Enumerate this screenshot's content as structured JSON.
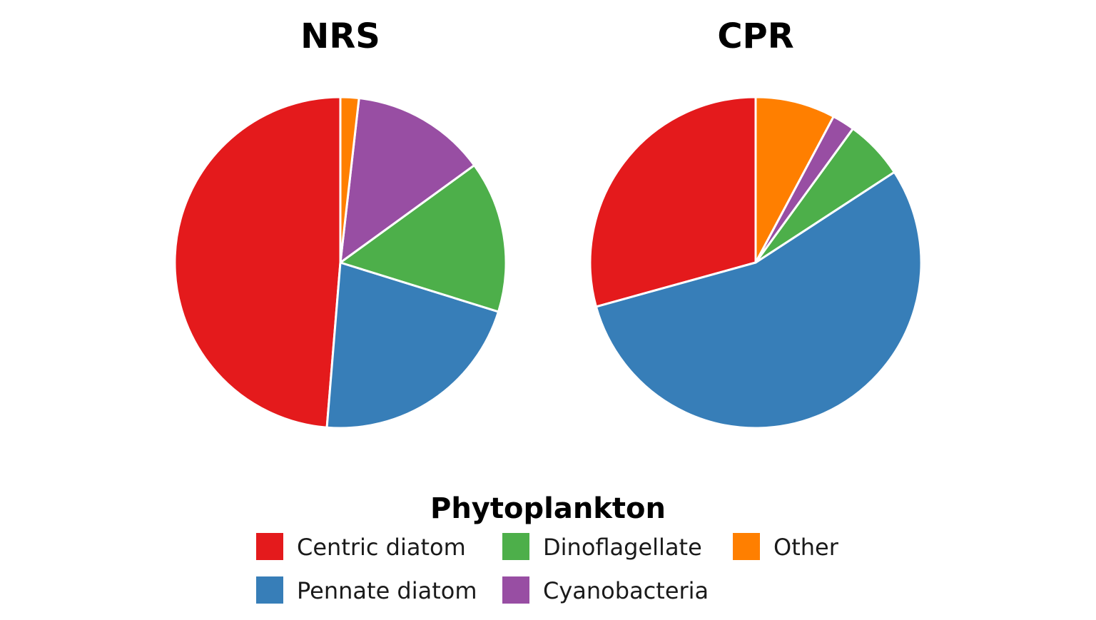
{
  "chart_data": [
    {
      "type": "pie",
      "title": "NRS",
      "categories": [
        "Centric diatom",
        "Pennate diatom",
        "Dinoflagellate",
        "Cyanobacteria",
        "Other"
      ],
      "values": [
        48.7,
        21.5,
        14.8,
        13.2,
        1.8
      ],
      "start": "12 o'clock",
      "direction": "counterclockwise"
    },
    {
      "type": "pie",
      "title": "CPR",
      "categories": [
        "Centric diatom",
        "Pennate diatom",
        "Dinoflagellate",
        "Cyanobacteria",
        "Other"
      ],
      "values": [
        29.3,
        54.9,
        5.8,
        2.2,
        7.8
      ],
      "start": "12 o'clock",
      "direction": "counterclockwise"
    }
  ],
  "legend": {
    "title": "Phytoplankton",
    "placement": "bottom",
    "items": [
      {
        "label": "Centric diatom",
        "color": "#E41A1C"
      },
      {
        "label": "Pennate diatom",
        "color": "#377EB8"
      },
      {
        "label": "Dinoflagellate",
        "color": "#4DAF4A"
      },
      {
        "label": "Cyanobacteria",
        "color": "#984EA3"
      },
      {
        "label": "Other",
        "color": "#FF7F00"
      }
    ]
  }
}
